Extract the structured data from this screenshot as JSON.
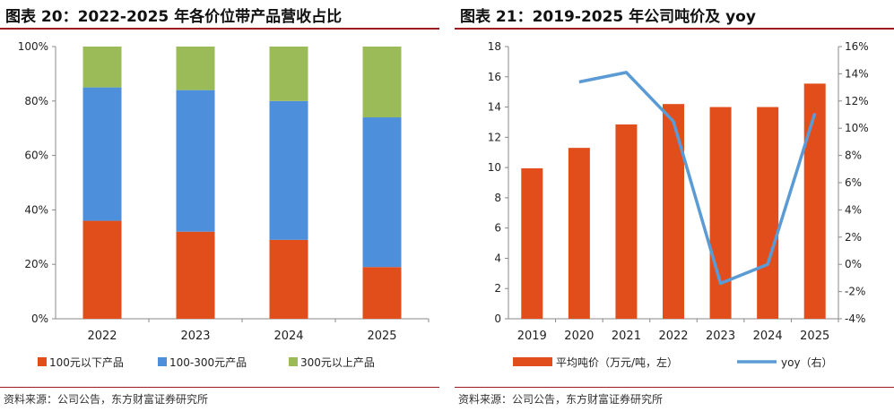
{
  "left_panel": {
    "title": "图表 20：2022-2025 年各价位带产品营收占比",
    "source": "资料来源：公司公告，东方财富证券研究所"
  },
  "right_panel": {
    "title": "图表 21：2019-2025 年公司吨价及 yoy",
    "source": "资料来源：公司公告，东方财富证券研究所"
  },
  "colors": {
    "orange": "#e24e1b",
    "blue": "#4d8fdb",
    "green": "#9bbb59",
    "line": "#5b9bd5",
    "rule": "#9b1b20"
  },
  "chart_data": [
    {
      "type": "bar",
      "stacked": true,
      "categories": [
        "2022",
        "2023",
        "2024",
        "2025"
      ],
      "series": [
        {
          "name": "100元以下产品",
          "color": "#e24e1b",
          "values": [
            36,
            32,
            29,
            19
          ]
        },
        {
          "name": "100-300元产品",
          "color": "#4d8fdb",
          "values": [
            49,
            52,
            51,
            55
          ]
        },
        {
          "name": "300元以上产品",
          "color": "#9bbb59",
          "values": [
            15,
            16,
            20,
            26
          ]
        }
      ],
      "ylim": [
        0,
        100
      ],
      "yticks": [
        "0%",
        "20%",
        "40%",
        "60%",
        "80%",
        "100%"
      ],
      "legend_position": "bottom",
      "grid": false
    },
    {
      "type": "bar+line",
      "categories": [
        "2019",
        "2020",
        "2021",
        "2022",
        "2023",
        "2024",
        "2025"
      ],
      "series": [
        {
          "name": "平均吨价（万元/吨，左）",
          "type": "bar",
          "axis": "left",
          "color": "#e24e1b",
          "values": [
            9.95,
            11.3,
            12.85,
            14.2,
            14.0,
            14.0,
            15.55
          ]
        },
        {
          "name": "yoy（右）",
          "type": "line",
          "axis": "right",
          "color": "#5b9bd5",
          "values": [
            null,
            13.4,
            14.1,
            10.5,
            -1.4,
            0.0,
            11.1
          ]
        }
      ],
      "ylim_left": [
        0,
        18
      ],
      "yticks_left": [
        "0",
        "2",
        "4",
        "6",
        "8",
        "10",
        "12",
        "14",
        "16",
        "18"
      ],
      "ylim_right": [
        -4,
        16
      ],
      "yticks_right": [
        "-4%",
        "-2%",
        "0%",
        "2%",
        "4%",
        "6%",
        "8%",
        "10%",
        "12%",
        "14%",
        "16%"
      ],
      "legend_position": "bottom",
      "grid": false
    }
  ]
}
